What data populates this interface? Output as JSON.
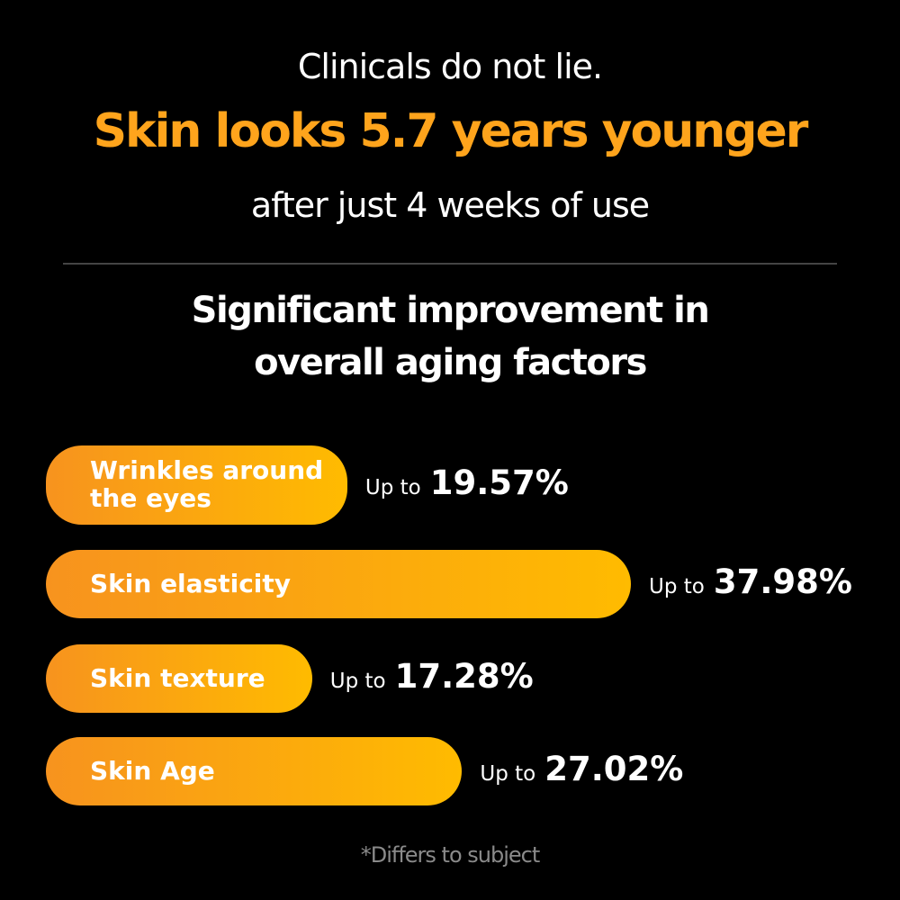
{
  "chart_data": {
    "type": "bar",
    "orientation": "horizontal",
    "pretitle": "Clinicals do not lie.",
    "title": "Skin looks 5.7 years younger",
    "subtitle": "after just 4 weeks of use",
    "heading": [
      "Significant improvement in",
      "overall aging factors"
    ],
    "categories": [
      "Wrinkles around the eyes",
      "Skin elasticity",
      "Skin texture",
      "Skin Age"
    ],
    "values": [
      19.57,
      37.98,
      17.28,
      27.02
    ],
    "value_labels": [
      "19.57%",
      "37.98%",
      "17.28%",
      "27.02%"
    ],
    "value_prefix": "Up to",
    "colors": [
      "#f7931e",
      "#ffbb00"
    ],
    "footnote": "*Differs to subject"
  }
}
